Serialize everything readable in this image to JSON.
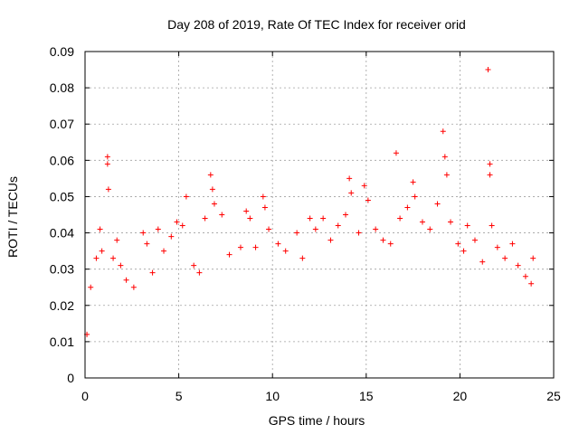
{
  "chart_data": {
    "type": "scatter",
    "title": "Day 208 of 2019, Rate Of TEC Index for receiver orid",
    "xlabel": "GPS time / hours",
    "ylabel": "ROTI / TECUs",
    "xlim": [
      0,
      25
    ],
    "ylim": [
      0,
      0.09
    ],
    "xticks": [
      0,
      5,
      10,
      15,
      20,
      25
    ],
    "xtick_labels": [
      "0",
      "5",
      "10",
      "15",
      "20",
      "25"
    ],
    "yticks": [
      0,
      0.01,
      0.02,
      0.03,
      0.04,
      0.05,
      0.06,
      0.07,
      0.08,
      0.09
    ],
    "ytick_labels": [
      "0",
      "0.01",
      "0.02",
      "0.03",
      "0.04",
      "0.05",
      "0.06",
      "0.07",
      "0.08",
      "0.09"
    ],
    "grid": true,
    "marker": "+",
    "color": "#ff0000",
    "series": [
      {
        "values": [
          [
            0.1,
            0.012
          ],
          [
            0.3,
            0.025
          ],
          [
            0.6,
            0.033
          ],
          [
            0.8,
            0.041
          ],
          [
            0.9,
            0.035
          ],
          [
            1.2,
            0.061
          ],
          [
            1.2,
            0.059
          ],
          [
            1.25,
            0.052
          ],
          [
            1.5,
            0.033
          ],
          [
            1.7,
            0.038
          ],
          [
            1.9,
            0.031
          ],
          [
            2.2,
            0.027
          ],
          [
            2.6,
            0.025
          ],
          [
            3.1,
            0.04
          ],
          [
            3.3,
            0.037
          ],
          [
            3.6,
            0.029
          ],
          [
            3.9,
            0.041
          ],
          [
            4.2,
            0.035
          ],
          [
            4.6,
            0.039
          ],
          [
            4.9,
            0.043
          ],
          [
            5.2,
            0.042
          ],
          [
            5.4,
            0.05
          ],
          [
            5.8,
            0.031
          ],
          [
            6.1,
            0.029
          ],
          [
            6.4,
            0.044
          ],
          [
            6.7,
            0.056
          ],
          [
            6.8,
            0.052
          ],
          [
            6.9,
            0.048
          ],
          [
            7.3,
            0.045
          ],
          [
            7.7,
            0.034
          ],
          [
            8.3,
            0.036
          ],
          [
            8.6,
            0.046
          ],
          [
            8.8,
            0.044
          ],
          [
            9.1,
            0.036
          ],
          [
            9.5,
            0.05
          ],
          [
            9.6,
            0.047
          ],
          [
            9.8,
            0.041
          ],
          [
            10.3,
            0.037
          ],
          [
            10.7,
            0.035
          ],
          [
            11.3,
            0.04
          ],
          [
            11.6,
            0.033
          ],
          [
            12.0,
            0.044
          ],
          [
            12.3,
            0.041
          ],
          [
            12.7,
            0.044
          ],
          [
            13.1,
            0.038
          ],
          [
            13.5,
            0.042
          ],
          [
            13.9,
            0.045
          ],
          [
            14.1,
            0.055
          ],
          [
            14.2,
            0.051
          ],
          [
            14.6,
            0.04
          ],
          [
            14.9,
            0.053
          ],
          [
            15.1,
            0.049
          ],
          [
            15.5,
            0.041
          ],
          [
            15.9,
            0.038
          ],
          [
            16.3,
            0.037
          ],
          [
            16.6,
            0.062
          ],
          [
            16.8,
            0.044
          ],
          [
            17.2,
            0.047
          ],
          [
            17.5,
            0.054
          ],
          [
            17.6,
            0.05
          ],
          [
            18.0,
            0.043
          ],
          [
            18.4,
            0.041
          ],
          [
            18.8,
            0.048
          ],
          [
            19.1,
            0.068
          ],
          [
            19.2,
            0.061
          ],
          [
            19.3,
            0.056
          ],
          [
            19.5,
            0.043
          ],
          [
            19.9,
            0.037
          ],
          [
            20.2,
            0.035
          ],
          [
            20.4,
            0.042
          ],
          [
            20.8,
            0.038
          ],
          [
            21.2,
            0.032
          ],
          [
            21.5,
            0.085
          ],
          [
            21.6,
            0.059
          ],
          [
            21.6,
            0.056
          ],
          [
            21.7,
            0.042
          ],
          [
            22.0,
            0.036
          ],
          [
            22.4,
            0.033
          ],
          [
            22.8,
            0.037
          ],
          [
            23.1,
            0.031
          ],
          [
            23.5,
            0.028
          ],
          [
            23.8,
            0.026
          ],
          [
            23.9,
            0.033
          ]
        ]
      }
    ]
  }
}
